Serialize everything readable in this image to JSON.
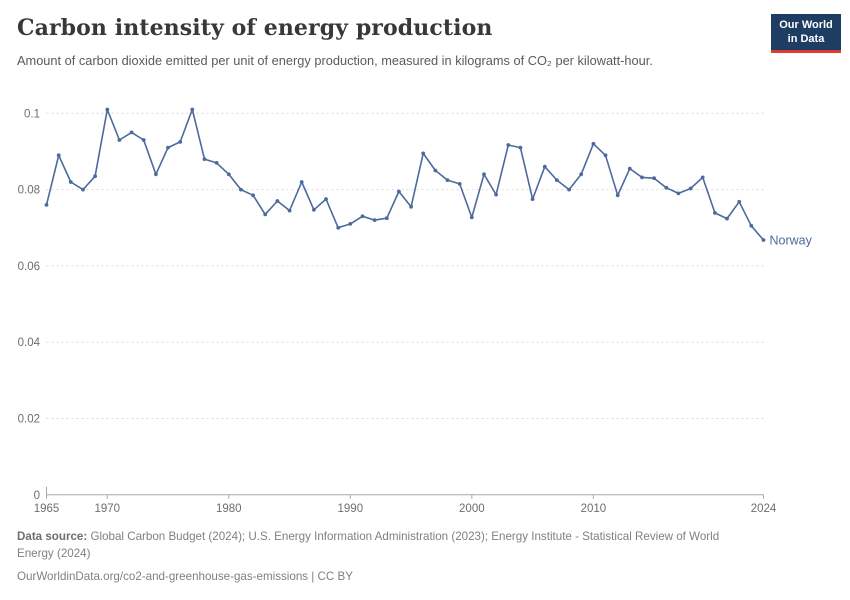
{
  "header": {
    "title": "Carbon intensity of energy production",
    "subtitle": "Amount of carbon dioxide emitted per unit of energy production, measured in kilograms of CO₂ per kilowatt-hour."
  },
  "logo": {
    "line1": "Our World",
    "line2": "in Data",
    "bg_color": "#1d3d63",
    "accent_color": "#dc3b33"
  },
  "chart_data": {
    "type": "line",
    "title": "Carbon intensity of energy production",
    "xlabel": "",
    "ylabel": "kg of CO₂ per kilowatt-hour",
    "ylim": [
      0,
      0.1
    ],
    "yticks": [
      0,
      0.02,
      0.04,
      0.06,
      0.08,
      0.1
    ],
    "ytick_labels": [
      "0",
      "0.02",
      "0.04",
      "0.06",
      "0.08",
      "0.1"
    ],
    "xticks": [
      1965,
      1970,
      1980,
      1990,
      2000,
      2010,
      2024
    ],
    "grid": "horizontal dashed gridlines on",
    "legend_position": "label at end of line",
    "x": [
      1965,
      1966,
      1967,
      1968,
      1969,
      1970,
      1971,
      1972,
      1973,
      1974,
      1975,
      1976,
      1977,
      1978,
      1979,
      1980,
      1981,
      1982,
      1983,
      1984,
      1985,
      1986,
      1987,
      1988,
      1989,
      1990,
      1991,
      1992,
      1993,
      1994,
      1995,
      1996,
      1997,
      1998,
      1999,
      2000,
      2001,
      2002,
      2003,
      2004,
      2005,
      2006,
      2007,
      2008,
      2009,
      2010,
      2011,
      2012,
      2013,
      2014,
      2015,
      2016,
      2017,
      2018,
      2019,
      2020,
      2021,
      2022,
      2023,
      2024
    ],
    "series": [
      {
        "name": "Norway",
        "color": "#4C6A9C",
        "values": [
          0.076,
          0.089,
          0.082,
          0.08,
          0.0835,
          0.101,
          0.093,
          0.095,
          0.093,
          0.084,
          0.091,
          0.0925,
          0.101,
          0.088,
          0.087,
          0.084,
          0.08,
          0.0785,
          0.0735,
          0.077,
          0.0745,
          0.082,
          0.0747,
          0.0775,
          0.07,
          0.071,
          0.073,
          0.072,
          0.0725,
          0.0795,
          0.0755,
          0.0895,
          0.085,
          0.0825,
          0.0815,
          0.0727,
          0.084,
          0.0787,
          0.0917,
          0.091,
          0.0775,
          0.086,
          0.0825,
          0.08,
          0.084,
          0.092,
          0.089,
          0.0785,
          0.0855,
          0.0832,
          0.083,
          0.0805,
          0.079,
          0.0803,
          0.0832,
          0.0739,
          0.0724,
          0.0768,
          0.0705,
          0.0668
        ]
      }
    ]
  },
  "footer": {
    "data_source_label": "Data source:",
    "data_source_line1": "Global Carbon Budget (2024); U.S. Energy Information Administration (2023); Energy Institute - Statistical Review of World",
    "data_source_line2": "Energy (2024)",
    "citation": "OurWorldinData.org/co2-and-greenhouse-gas-emissions | CC BY"
  }
}
